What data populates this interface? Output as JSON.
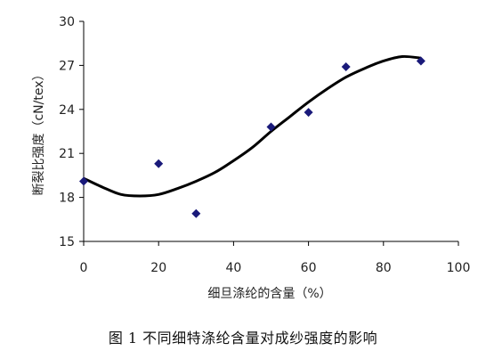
{
  "caption": "图 1   不同细特涤纶含量对成纱强度的影响",
  "chart_data": {
    "type": "scatter",
    "xlabel": "细旦涤纶的含量（%）",
    "ylabel": "断裂比强度（cN/tex）",
    "xlim": [
      0,
      100
    ],
    "ylim": [
      15,
      30
    ],
    "xticks": [
      0,
      20,
      40,
      60,
      80,
      100
    ],
    "yticks": [
      15,
      18,
      21,
      24,
      27,
      30
    ],
    "grid": false,
    "legend": "none",
    "series": [
      {
        "type": "scatter",
        "marker": "diamond",
        "color": "#1a1a7a",
        "x": [
          0,
          20,
          30,
          50,
          60,
          70,
          90
        ],
        "y": [
          19.1,
          20.3,
          16.9,
          22.8,
          23.8,
          26.9,
          27.3
        ]
      },
      {
        "type": "line",
        "color": "#000000",
        "x": [
          0,
          5,
          10,
          15,
          20,
          25,
          30,
          35,
          40,
          45,
          50,
          55,
          60,
          65,
          70,
          75,
          80,
          85,
          90
        ],
        "y": [
          19.3,
          18.7,
          18.2,
          18.1,
          18.2,
          18.6,
          19.1,
          19.7,
          20.5,
          21.4,
          22.5,
          23.5,
          24.5,
          25.4,
          26.2,
          26.8,
          27.3,
          27.6,
          27.5
        ]
      }
    ]
  }
}
